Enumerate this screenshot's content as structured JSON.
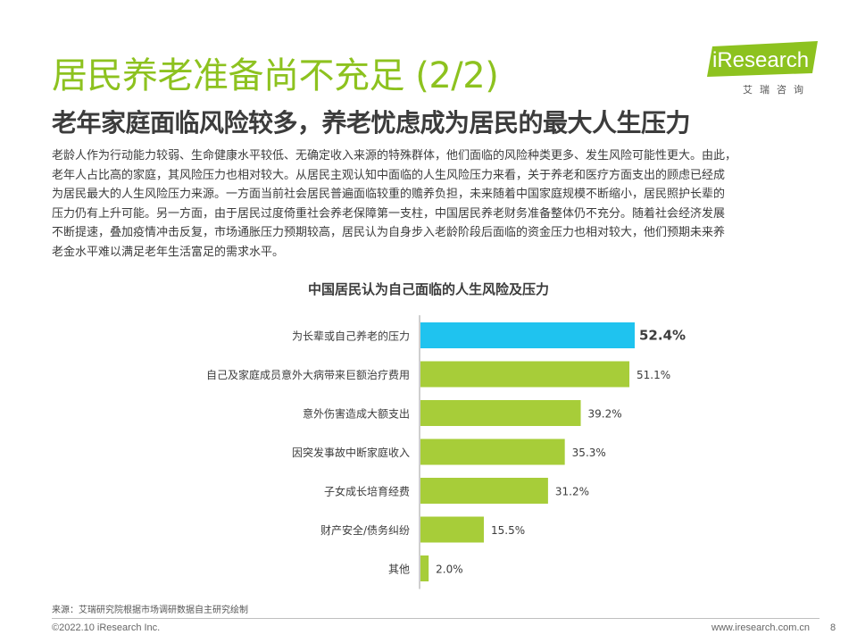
{
  "header": {
    "title": "居民养老准备尚不充足 (2/2)",
    "subtitle": "老年家庭面临风险较多，养老忧虑成为居民的最大人生压力"
  },
  "logo": {
    "brand_i": "i",
    "brand_rest": "Research",
    "sub": "艾瑞咨询"
  },
  "body": {
    "paragraph": "老龄人作为行动能力较弱、生命健康水平较低、无确定收入来源的特殊群体，他们面临的风险种类更多、发生风险可能性更大。由此，\n老年人占比高的家庭，其风险压力也相对较大。从居民主观认知中面临的人生风险压力来看，关于养老和医疗方面支出的顾虑已经成\n为居民最大的人生风险压力来源。一方面当前社会居民普遍面临较重的赡养负担，未来随着中国家庭规模不断缩小，居民照护长辈的\n压力仍有上升可能。另一方面，由于居民过度倚重社会养老保障第一支柱，中国居民养老财务准备整体仍不充分。随着社会经济发展\n不断提速，叠加疫情冲击反复，市场通胀压力预期较高，居民认为自身步入老龄阶段后面临的资金压力也相对较大，他们预期未来养\n老金水平难以满足老年生活富足的需求水平。"
  },
  "chart_data": {
    "type": "bar",
    "orientation": "horizontal",
    "title": "中国居民认为自己面临的人生风险及压力",
    "categories": [
      "为长辈或自己养老的压力",
      "自己及家庭成员意外大病带来巨额治疗费用",
      "意外伤害造成大额支出",
      "因突发事故中断家庭收入",
      "子女成长培育经费",
      "财产安全/债务纠纷",
      "其他"
    ],
    "values": [
      52.4,
      51.1,
      39.2,
      35.3,
      31.2,
      15.5,
      2.0
    ],
    "value_labels": [
      "52.4%",
      "51.1%",
      "39.2%",
      "35.3%",
      "31.2%",
      "15.5%",
      "2.0%"
    ],
    "highlight_index": 0,
    "colors": {
      "highlight": "#1fc3ef",
      "default": "#a7cd39",
      "axis": "#bfbfbf",
      "text": "#3c3c3c"
    },
    "xlim": [
      0,
      52.4
    ],
    "grid": false,
    "legend": "none"
  },
  "footer": {
    "source": "来源：艾瑞研究院根据市场调研数据自主研究绘制",
    "copyright": "©2022.10 iResearch Inc.",
    "url": "www.iresearch.com.cn",
    "page": "8"
  }
}
